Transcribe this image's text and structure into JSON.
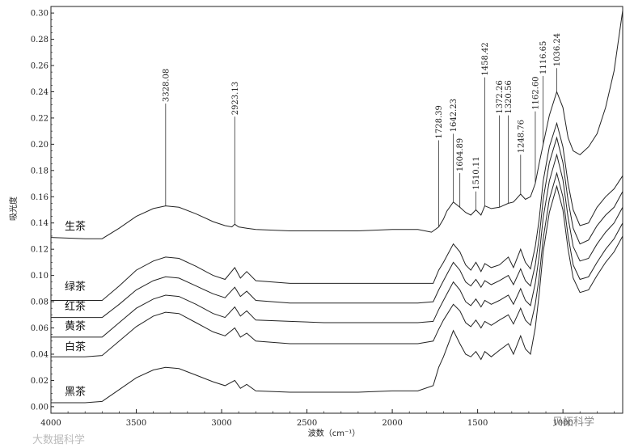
{
  "chart_data": {
    "type": "line",
    "title": "",
    "xlabel": "波数（cm⁻¹）",
    "ylabel": "吸光度",
    "xlim": [
      4000,
      650
    ],
    "ylim": [
      -0.005,
      0.305
    ],
    "x_ticks": [
      4000,
      3500,
      3000,
      2500,
      2000,
      1500,
      1000
    ],
    "y_ticks": [
      0.0,
      0.02,
      0.04,
      0.06,
      0.08,
      0.1,
      0.12,
      0.14,
      0.16,
      0.18,
      0.2,
      0.22,
      0.24,
      0.26,
      0.28,
      0.3
    ],
    "grid": false,
    "series": [
      {
        "name": "生茶",
        "x": [
          4000,
          3800,
          3700,
          3600,
          3500,
          3400,
          3328,
          3250,
          3150,
          3050,
          2980,
          2940,
          2923,
          2900,
          2853,
          2800,
          2600,
          2400,
          2200,
          2000,
          1850,
          1770,
          1728,
          1700,
          1680,
          1642,
          1604,
          1570,
          1540,
          1510,
          1480,
          1458,
          1420,
          1372,
          1320,
          1290,
          1248,
          1220,
          1190,
          1162,
          1140,
          1116,
          1080,
          1036,
          1000,
          970,
          940,
          900,
          850,
          800,
          750,
          700,
          650
        ],
        "y": [
          0.129,
          0.128,
          0.128,
          0.136,
          0.145,
          0.151,
          0.153,
          0.152,
          0.147,
          0.141,
          0.138,
          0.137,
          0.139,
          0.137,
          0.136,
          0.135,
          0.134,
          0.134,
          0.134,
          0.135,
          0.135,
          0.133,
          0.137,
          0.143,
          0.149,
          0.156,
          0.152,
          0.148,
          0.146,
          0.15,
          0.146,
          0.153,
          0.151,
          0.152,
          0.155,
          0.156,
          0.162,
          0.158,
          0.16,
          0.17,
          0.185,
          0.2,
          0.222,
          0.24,
          0.228,
          0.205,
          0.195,
          0.192,
          0.198,
          0.208,
          0.228,
          0.256,
          0.302
        ]
      },
      {
        "name": "绿茶",
        "x": [
          4000,
          3800,
          3700,
          3600,
          3500,
          3400,
          3328,
          3250,
          3150,
          3050,
          2980,
          2923,
          2890,
          2853,
          2800,
          2600,
          2400,
          2200,
          2000,
          1850,
          1760,
          1728,
          1700,
          1642,
          1604,
          1570,
          1540,
          1510,
          1480,
          1458,
          1420,
          1372,
          1320,
          1290,
          1248,
          1220,
          1190,
          1162,
          1140,
          1116,
          1080,
          1036,
          1000,
          970,
          940,
          900,
          850,
          800,
          750,
          700,
          650
        ],
        "y": [
          0.081,
          0.081,
          0.081,
          0.092,
          0.104,
          0.111,
          0.114,
          0.113,
          0.107,
          0.1,
          0.097,
          0.106,
          0.098,
          0.103,
          0.096,
          0.094,
          0.094,
          0.094,
          0.094,
          0.094,
          0.094,
          0.104,
          0.11,
          0.124,
          0.118,
          0.108,
          0.104,
          0.11,
          0.103,
          0.109,
          0.106,
          0.108,
          0.114,
          0.106,
          0.12,
          0.11,
          0.105,
          0.122,
          0.142,
          0.172,
          0.198,
          0.216,
          0.198,
          0.17,
          0.15,
          0.138,
          0.14,
          0.152,
          0.16,
          0.166,
          0.176
        ]
      },
      {
        "name": "红茶",
        "x": [
          4000,
          3800,
          3700,
          3600,
          3500,
          3400,
          3328,
          3250,
          3150,
          3050,
          2980,
          2923,
          2890,
          2853,
          2800,
          2600,
          2400,
          2200,
          2000,
          1850,
          1760,
          1728,
          1700,
          1642,
          1604,
          1570,
          1540,
          1510,
          1480,
          1458,
          1420,
          1372,
          1320,
          1290,
          1248,
          1220,
          1190,
          1162,
          1140,
          1116,
          1080,
          1036,
          1000,
          970,
          940,
          900,
          850,
          800,
          750,
          700,
          650
        ],
        "y": [
          0.068,
          0.068,
          0.068,
          0.078,
          0.089,
          0.096,
          0.099,
          0.098,
          0.092,
          0.086,
          0.083,
          0.091,
          0.084,
          0.088,
          0.081,
          0.079,
          0.079,
          0.079,
          0.079,
          0.079,
          0.08,
          0.089,
          0.096,
          0.11,
          0.104,
          0.095,
          0.092,
          0.097,
          0.091,
          0.096,
          0.093,
          0.096,
          0.1,
          0.093,
          0.105,
          0.096,
          0.092,
          0.108,
          0.128,
          0.158,
          0.186,
          0.205,
          0.186,
          0.157,
          0.136,
          0.124,
          0.127,
          0.138,
          0.146,
          0.152,
          0.164
        ]
      },
      {
        "name": "黄茶",
        "x": [
          4000,
          3800,
          3700,
          3600,
          3500,
          3400,
          3328,
          3250,
          3150,
          3050,
          2980,
          2923,
          2890,
          2853,
          2800,
          2600,
          2400,
          2200,
          2000,
          1850,
          1760,
          1728,
          1700,
          1642,
          1604,
          1570,
          1540,
          1510,
          1480,
          1458,
          1420,
          1372,
          1320,
          1290,
          1248,
          1220,
          1190,
          1162,
          1140,
          1116,
          1080,
          1036,
          1000,
          970,
          940,
          900,
          850,
          800,
          750,
          700,
          650
        ],
        "y": [
          0.053,
          0.053,
          0.053,
          0.064,
          0.075,
          0.082,
          0.085,
          0.084,
          0.078,
          0.071,
          0.068,
          0.076,
          0.069,
          0.073,
          0.066,
          0.065,
          0.064,
          0.064,
          0.064,
          0.064,
          0.065,
          0.074,
          0.081,
          0.095,
          0.089,
          0.08,
          0.077,
          0.082,
          0.076,
          0.081,
          0.078,
          0.081,
          0.085,
          0.078,
          0.09,
          0.081,
          0.077,
          0.094,
          0.114,
          0.144,
          0.172,
          0.192,
          0.173,
          0.144,
          0.122,
          0.111,
          0.113,
          0.124,
          0.133,
          0.14,
          0.152
        ]
      },
      {
        "name": "白茶",
        "x": [
          4000,
          3800,
          3700,
          3600,
          3500,
          3400,
          3328,
          3250,
          3150,
          3050,
          2980,
          2923,
          2890,
          2853,
          2800,
          2600,
          2400,
          2200,
          2000,
          1850,
          1760,
          1728,
          1700,
          1642,
          1604,
          1570,
          1540,
          1510,
          1480,
          1458,
          1420,
          1372,
          1320,
          1290,
          1248,
          1220,
          1190,
          1162,
          1140,
          1116,
          1080,
          1036,
          1000,
          970,
          940,
          900,
          850,
          800,
          750,
          700,
          650
        ],
        "y": [
          0.038,
          0.038,
          0.039,
          0.05,
          0.061,
          0.069,
          0.072,
          0.071,
          0.064,
          0.057,
          0.054,
          0.06,
          0.053,
          0.056,
          0.05,
          0.048,
          0.048,
          0.048,
          0.048,
          0.048,
          0.05,
          0.059,
          0.066,
          0.078,
          0.073,
          0.064,
          0.061,
          0.066,
          0.06,
          0.065,
          0.062,
          0.066,
          0.07,
          0.063,
          0.075,
          0.066,
          0.062,
          0.078,
          0.098,
          0.128,
          0.158,
          0.178,
          0.16,
          0.13,
          0.108,
          0.097,
          0.099,
          0.11,
          0.12,
          0.128,
          0.14
        ]
      },
      {
        "name": "黑茶",
        "x": [
          4000,
          3800,
          3700,
          3600,
          3500,
          3400,
          3328,
          3250,
          3150,
          3050,
          2980,
          2923,
          2890,
          2853,
          2800,
          2600,
          2400,
          2200,
          2000,
          1850,
          1760,
          1728,
          1700,
          1642,
          1604,
          1570,
          1540,
          1510,
          1480,
          1458,
          1420,
          1372,
          1320,
          1290,
          1248,
          1220,
          1190,
          1162,
          1140,
          1116,
          1080,
          1036,
          1000,
          970,
          940,
          900,
          850,
          800,
          750,
          700,
          650
        ],
        "y": [
          0.003,
          0.003,
          0.004,
          0.013,
          0.022,
          0.028,
          0.03,
          0.029,
          0.024,
          0.019,
          0.016,
          0.02,
          0.014,
          0.017,
          0.012,
          0.011,
          0.011,
          0.011,
          0.012,
          0.012,
          0.016,
          0.03,
          0.038,
          0.058,
          0.048,
          0.04,
          0.038,
          0.042,
          0.036,
          0.042,
          0.038,
          0.043,
          0.048,
          0.04,
          0.054,
          0.044,
          0.04,
          0.06,
          0.085,
          0.118,
          0.148,
          0.168,
          0.15,
          0.12,
          0.098,
          0.087,
          0.089,
          0.1,
          0.11,
          0.118,
          0.13
        ]
      }
    ],
    "series_label_positions": [
      {
        "name": "生茶",
        "y": 0.138
      },
      {
        "name": "绿茶",
        "y": 0.092
      },
      {
        "name": "红茶",
        "y": 0.077
      },
      {
        "name": "黄茶",
        "y": 0.062
      },
      {
        "name": "白茶",
        "y": 0.046
      },
      {
        "name": "黑茶",
        "y": 0.012
      }
    ],
    "peaks": [
      {
        "label": "3328.08",
        "x": 3328,
        "y_top": 0.231
      },
      {
        "label": "2923.13",
        "x": 2923,
        "y_top": 0.221
      },
      {
        "label": "1728.39",
        "x": 1728,
        "y_top": 0.203
      },
      {
        "label": "1642.23",
        "x": 1642,
        "y_top": 0.208
      },
      {
        "label": "1604.89",
        "x": 1604,
        "y_top": 0.178
      },
      {
        "label": "1510.11",
        "x": 1510,
        "y_top": 0.164
      },
      {
        "label": "1458.42",
        "x": 1458,
        "y_top": 0.251
      },
      {
        "label": "1372.26",
        "x": 1372,
        "y_top": 0.222
      },
      {
        "label": "1320.56",
        "x": 1320,
        "y_top": 0.222
      },
      {
        "label": "1248.76",
        "x": 1248,
        "y_top": 0.192
      },
      {
        "label": "1162.60",
        "x": 1162,
        "y_top": 0.225
      },
      {
        "label": "1116.65",
        "x": 1116,
        "y_top": 0.252
      },
      {
        "label": "1036.24",
        "x": 1036,
        "y_top": 0.258
      }
    ]
  },
  "watermarks": {
    "left": "大数据科学",
    "right": "贝拓科学"
  }
}
